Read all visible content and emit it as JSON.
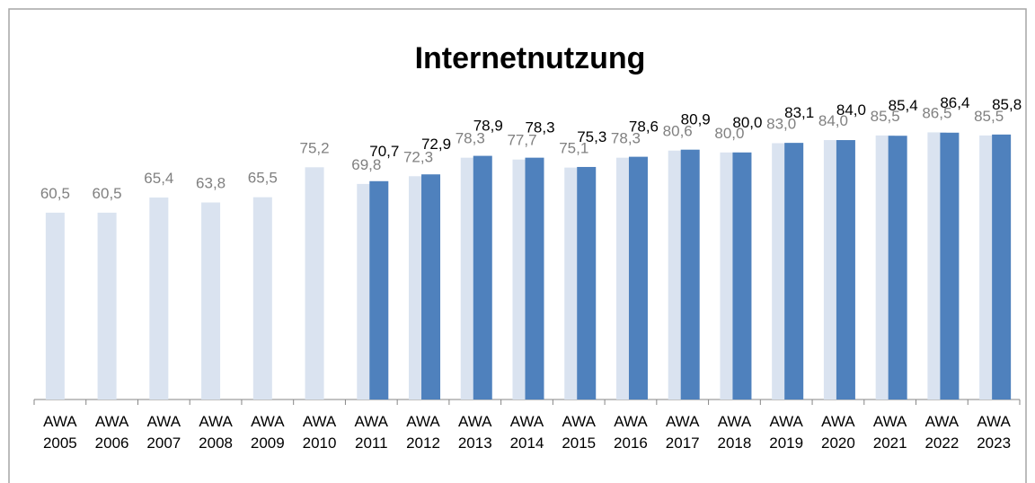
{
  "chart_data": {
    "type": "bar",
    "title": "Internetnutzung",
    "categories": [
      "AWA 2005",
      "AWA 2006",
      "AWA 2007",
      "AWA 2008",
      "AWA 2009",
      "AWA 2010",
      "AWA 2011",
      "AWA 2012",
      "AWA 2013",
      "AWA 2014",
      "AWA 2015",
      "AWA 2016",
      "AWA 2017",
      "AWA 2018",
      "AWA 2019",
      "AWA 2020",
      "AWA 2021",
      "AWA 2022",
      "AWA 2023"
    ],
    "series": [
      {
        "color": "#dae3f0",
        "label_color": "#808080",
        "values": [
          60.5,
          60.5,
          65.4,
          63.8,
          65.5,
          75.2,
          69.8,
          72.3,
          78.3,
          77.7,
          75.1,
          78.3,
          80.6,
          80.0,
          83.0,
          84.0,
          85.5,
          86.5,
          85.5
        ],
        "value_labels": [
          "60,5",
          "60,5",
          "65,4",
          "63,8",
          "65,5",
          "75,2",
          "69,8",
          "72,3",
          "78,3",
          "77,7",
          "75,1",
          "78,3",
          "80,6",
          "80,0",
          "83,0",
          "84,0",
          "85,5",
          "86,5",
          "85,5"
        ]
      },
      {
        "color": "#4f81bd",
        "label_color": "#000000",
        "values": [
          null,
          null,
          null,
          null,
          null,
          null,
          70.7,
          72.9,
          78.9,
          78.3,
          75.3,
          78.6,
          80.9,
          80.0,
          83.1,
          84.0,
          85.4,
          86.4,
          85.8
        ],
        "value_labels": [
          null,
          null,
          null,
          null,
          null,
          null,
          "70,7",
          "72,9",
          "78,9",
          "78,3",
          "75,3",
          "78,6",
          "80,9",
          "80,0",
          "83,1",
          "84,0",
          "85,4",
          "86,4",
          "85,8"
        ]
      }
    ],
    "ylim": [
      0,
      100
    ]
  }
}
